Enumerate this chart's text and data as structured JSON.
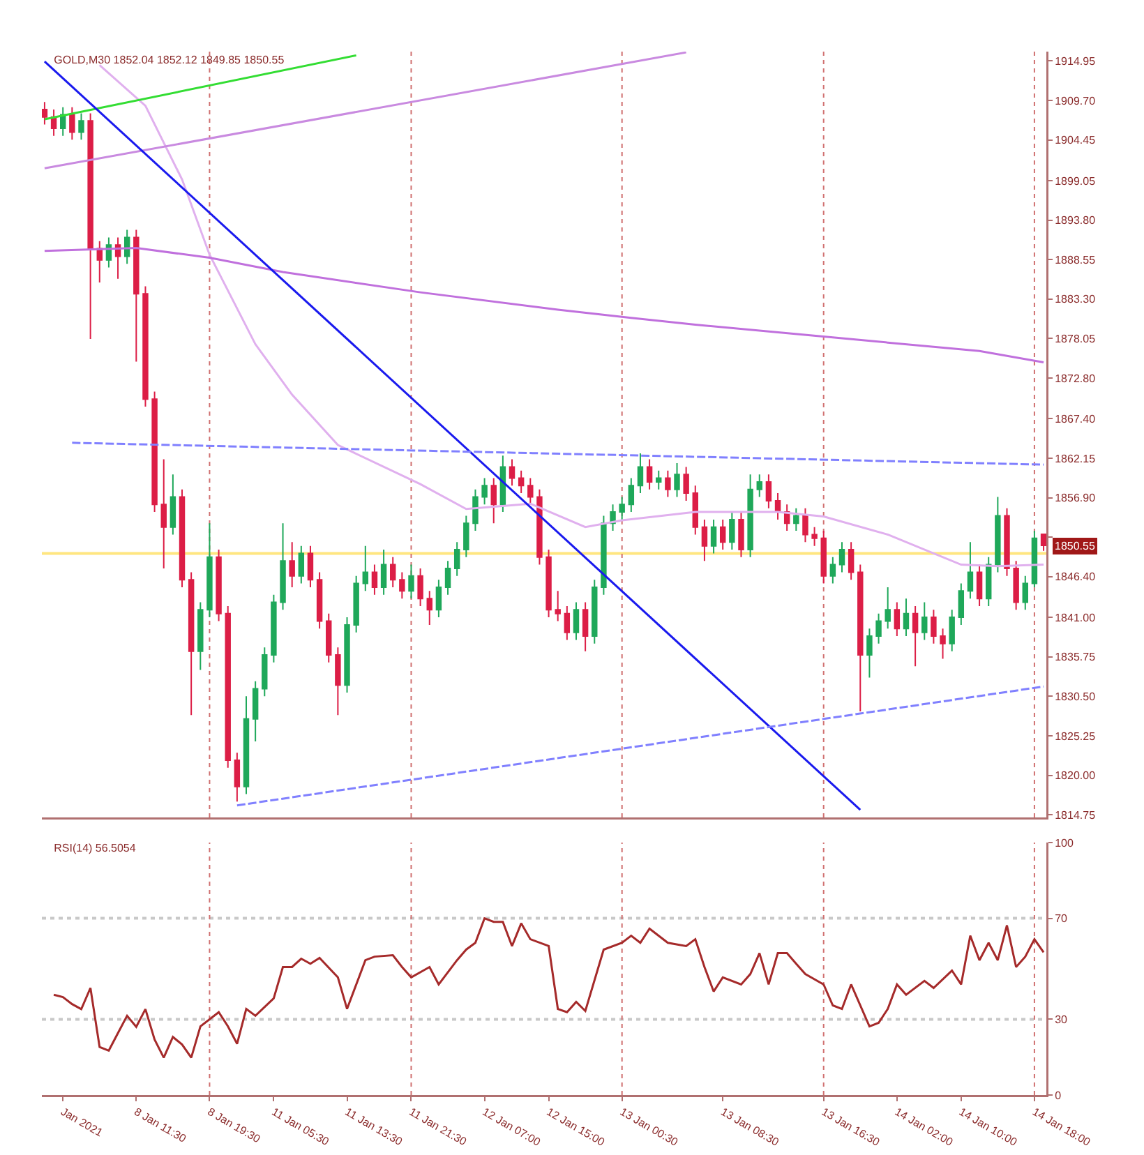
{
  "chart_data": [
    {
      "type": "candlestick",
      "title": "GOLD,M30 1852.04 1852.12 1849.85 1850.55",
      "categories": [
        null,
        null,
        "Jan 2021",
        null,
        null,
        null,
        null,
        null,
        null,
        null,
        "8 Jan 11:30",
        null,
        null,
        null,
        null,
        null,
        null,
        null,
        "8 Jan 19:30",
        null,
        null,
        null,
        null,
        null,
        null,
        "11 Jan 05:30",
        null,
        null,
        null,
        null,
        null,
        null,
        null,
        "11 Jan 13:30",
        null,
        null,
        null,
        null,
        null,
        null,
        "11 Jan 21:30",
        null,
        null,
        null,
        null,
        null,
        null,
        null,
        "12 Jan 07:00",
        null,
        null,
        null,
        null,
        null,
        null,
        "12 Jan 15:00",
        null,
        null,
        null,
        null,
        null,
        null,
        null,
        "13 Jan 00:30",
        null,
        null,
        null,
        null,
        null,
        null,
        null,
        null,
        null,
        null,
        "13 Jan 08:30",
        null,
        null,
        null,
        null,
        null,
        null,
        null,
        null,
        null,
        null,
        "13 Jan 16:30",
        null,
        null,
        null,
        null,
        null,
        null,
        null,
        "14 Jan 02:00",
        null,
        null,
        null,
        null,
        null,
        null,
        "14 Jan 10:00",
        null,
        null,
        null,
        null,
        null,
        null,
        null,
        "14 Jan 18:00",
        null
      ],
      "ohlc": [
        [
          1908.5,
          1909.5,
          1906.5,
          1907.5
        ],
        [
          1907.5,
          1908.5,
          1905.0,
          1906.0
        ],
        [
          1906.0,
          1908.8,
          1905.0,
          1907.8
        ],
        [
          1907.8,
          1908.8,
          1904.5,
          1905.5
        ],
        [
          1905.5,
          1908.0,
          1904.5,
          1907.0
        ],
        [
          1907.0,
          1908.0,
          1878.0,
          1890.0
        ],
        [
          1890.0,
          1891.0,
          1885.5,
          1888.5
        ],
        [
          1888.5,
          1891.5,
          1887.5,
          1890.5
        ],
        [
          1890.5,
          1891.5,
          1886.0,
          1889.0
        ],
        [
          1889.0,
          1892.5,
          1888.0,
          1891.5
        ],
        [
          1891.5,
          1892.5,
          1875.0,
          1884.0
        ],
        [
          1884.0,
          1885.0,
          1869.0,
          1870.0
        ],
        [
          1870.0,
          1871.0,
          1855.0,
          1856.0
        ],
        [
          1856.0,
          1862.0,
          1847.5,
          1853.0
        ],
        [
          1853.0,
          1860.0,
          1852.0,
          1857.0
        ],
        [
          1857.0,
          1858.0,
          1845.0,
          1846.0
        ],
        [
          1846.0,
          1847.0,
          1828.0,
          1836.5
        ],
        [
          1836.5,
          1843.0,
          1834.0,
          1842.0
        ],
        [
          1842.0,
          1853.5,
          1841.0,
          1849.0
        ],
        [
          1849.0,
          1850.0,
          1840.5,
          1841.5
        ],
        [
          1841.5,
          1842.5,
          1821.0,
          1822.0
        ],
        [
          1822.0,
          1823.0,
          1816.5,
          1818.5
        ],
        [
          1818.5,
          1830.5,
          1817.5,
          1827.5
        ],
        [
          1827.5,
          1832.5,
          1824.5,
          1831.5
        ],
        [
          1831.5,
          1837.0,
          1830.5,
          1836.0
        ],
        [
          1836.0,
          1844.0,
          1835.0,
          1843.0
        ],
        [
          1843.0,
          1853.5,
          1842.0,
          1848.5
        ],
        [
          1848.5,
          1851.0,
          1845.0,
          1846.5
        ],
        [
          1846.5,
          1850.5,
          1845.5,
          1849.5
        ],
        [
          1849.5,
          1850.5,
          1845.0,
          1846.0
        ],
        [
          1846.0,
          1847.0,
          1839.5,
          1840.5
        ],
        [
          1840.5,
          1841.5,
          1835.0,
          1836.0
        ],
        [
          1836.0,
          1837.0,
          1828.0,
          1832.0
        ],
        [
          1832.0,
          1841.0,
          1831.0,
          1840.0
        ],
        [
          1840.0,
          1846.5,
          1839.0,
          1845.5
        ],
        [
          1845.5,
          1850.5,
          1844.5,
          1847.0
        ],
        [
          1847.0,
          1848.0,
          1844.0,
          1845.0
        ],
        [
          1845.0,
          1850.0,
          1844.0,
          1848.0
        ],
        [
          1848.0,
          1849.0,
          1845.0,
          1846.0
        ],
        [
          1846.0,
          1847.0,
          1843.5,
          1844.5
        ],
        [
          1844.5,
          1848.0,
          1843.5,
          1846.5
        ],
        [
          1846.5,
          1847.5,
          1842.5,
          1843.5
        ],
        [
          1843.5,
          1844.5,
          1840.0,
          1842.0
        ],
        [
          1842.0,
          1846.0,
          1841.0,
          1845.0
        ],
        [
          1845.0,
          1848.5,
          1844.0,
          1847.5
        ],
        [
          1847.5,
          1851.0,
          1846.5,
          1850.0
        ],
        [
          1850.0,
          1854.5,
          1849.0,
          1853.5
        ],
        [
          1853.5,
          1858.0,
          1852.5,
          1857.0
        ],
        [
          1857.0,
          1859.5,
          1856.0,
          1858.5
        ],
        [
          1858.5,
          1859.5,
          1853.5,
          1856.0
        ],
        [
          1856.0,
          1862.5,
          1855.0,
          1861.0
        ],
        [
          1861.0,
          1862.0,
          1858.5,
          1859.5
        ],
        [
          1859.5,
          1860.5,
          1857.5,
          1858.5
        ],
        [
          1858.5,
          1859.5,
          1856.0,
          1857.0
        ],
        [
          1857.0,
          1858.0,
          1848.0,
          1849.0
        ],
        [
          1849.0,
          1850.0,
          1841.0,
          1842.0
        ],
        [
          1842.0,
          1844.5,
          1840.5,
          1841.5
        ],
        [
          1841.5,
          1842.5,
          1838.0,
          1839.0
        ],
        [
          1839.0,
          1843.0,
          1838.0,
          1842.0
        ],
        [
          1842.0,
          1843.0,
          1836.5,
          1838.5
        ],
        [
          1838.5,
          1846.0,
          1837.5,
          1845.0
        ],
        [
          1845.0,
          1854.5,
          1844.0,
          1853.5
        ],
        [
          1853.5,
          1856.0,
          1852.5,
          1855.0
        ],
        [
          1855.0,
          1857.0,
          1854.0,
          1856.0
        ],
        [
          1856.0,
          1859.5,
          1855.0,
          1858.5
        ],
        [
          1858.5,
          1862.8,
          1857.5,
          1861.0
        ],
        [
          1861.0,
          1862.0,
          1858.0,
          1859.0
        ],
        [
          1859.0,
          1860.5,
          1858.0,
          1859.5
        ],
        [
          1859.5,
          1860.5,
          1857.0,
          1858.0
        ],
        [
          1858.0,
          1861.5,
          1857.0,
          1860.0
        ],
        [
          1860.0,
          1861.0,
          1856.5,
          1857.5
        ],
        [
          1857.5,
          1858.5,
          1852.0,
          1853.0
        ],
        [
          1853.0,
          1854.0,
          1848.5,
          1850.5
        ],
        [
          1850.5,
          1854.0,
          1849.5,
          1853.0
        ],
        [
          1853.0,
          1854.0,
          1850.0,
          1851.0
        ],
        [
          1851.0,
          1855.0,
          1850.0,
          1854.0
        ],
        [
          1854.0,
          1855.0,
          1849.0,
          1850.0
        ],
        [
          1850.0,
          1860.0,
          1849.0,
          1858.0
        ],
        [
          1858.0,
          1860.0,
          1857.0,
          1859.0
        ],
        [
          1859.0,
          1860.0,
          1855.5,
          1856.5
        ],
        [
          1856.5,
          1857.5,
          1854.0,
          1855.0
        ],
        [
          1855.0,
          1856.0,
          1852.5,
          1853.5
        ],
        [
          1853.5,
          1855.5,
          1852.5,
          1854.5
        ],
        [
          1854.5,
          1855.5,
          1851.0,
          1852.0
        ],
        [
          1852.0,
          1853.0,
          1850.5,
          1851.5
        ],
        [
          1851.5,
          1852.5,
          1845.5,
          1846.5
        ],
        [
          1846.5,
          1849.0,
          1845.5,
          1848.0
        ],
        [
          1848.0,
          1851.0,
          1847.0,
          1850.0
        ],
        [
          1850.0,
          1851.0,
          1846.0,
          1847.0
        ],
        [
          1847.0,
          1848.0,
          1828.5,
          1836.0
        ],
        [
          1836.0,
          1839.5,
          1833.0,
          1838.5
        ],
        [
          1838.5,
          1841.5,
          1837.5,
          1840.5
        ],
        [
          1840.5,
          1845.0,
          1839.5,
          1842.0
        ],
        [
          1842.0,
          1843.0,
          1838.5,
          1839.5
        ],
        [
          1839.5,
          1843.5,
          1838.5,
          1841.5
        ],
        [
          1841.5,
          1842.5,
          1834.5,
          1839.0
        ],
        [
          1839.0,
          1843.0,
          1838.0,
          1841.0
        ],
        [
          1841.0,
          1842.0,
          1837.5,
          1838.5
        ],
        [
          1838.5,
          1839.5,
          1835.5,
          1837.5
        ],
        [
          1837.5,
          1842.0,
          1836.5,
          1841.0
        ],
        [
          1841.0,
          1845.5,
          1840.0,
          1844.5
        ],
        [
          1844.5,
          1851.0,
          1843.5,
          1847.0
        ],
        [
          1847.0,
          1848.0,
          1842.5,
          1843.5
        ],
        [
          1843.5,
          1849.0,
          1842.5,
          1848.0
        ],
        [
          1848.0,
          1857.0,
          1847.0,
          1854.5
        ],
        [
          1854.5,
          1855.5,
          1846.5,
          1847.5
        ],
        [
          1847.5,
          1848.5,
          1842.0,
          1843.0
        ],
        [
          1843.0,
          1846.5,
          1842.0,
          1845.5
        ],
        [
          1845.5,
          1852.5,
          1845.0,
          1851.5
        ],
        [
          1852.04,
          1852.12,
          1849.85,
          1850.55
        ]
      ],
      "colors": [
        "#dc1e46",
        "#dc1e46",
        "#1fa85a",
        "#dc1e46",
        "#1fa85a",
        "#dc1e46",
        "#dc1e46",
        "#1fa85a",
        "#dc1e46",
        "#1fa85a",
        "#dc1e46",
        "#dc1e46",
        "#dc1e46",
        "#dc1e46",
        "#1fa85a",
        "#dc1e46",
        "#dc1e46",
        "#1fa85a",
        "#1fa85a",
        "#dc1e46",
        "#dc1e46",
        "#dc1e46",
        "#1fa85a",
        "#1fa85a",
        "#1fa85a",
        "#1fa85a",
        "#1fa85a",
        "#dc1e46",
        "#1fa85a",
        "#dc1e46",
        "#dc1e46",
        "#dc1e46",
        "#dc1e46",
        "#1fa85a",
        "#1fa85a",
        "#1fa85a",
        "#dc1e46",
        "#1fa85a",
        "#dc1e46",
        "#dc1e46",
        "#1fa85a",
        "#dc1e46",
        "#dc1e46",
        "#1fa85a",
        "#1fa85a",
        "#1fa85a",
        "#1fa85a",
        "#1fa85a",
        "#1fa85a",
        "#dc1e46",
        "#1fa85a",
        "#dc1e46",
        "#dc1e46",
        "#dc1e46",
        "#dc1e46",
        "#dc1e46",
        "#dc1e46",
        "#dc1e46",
        "#1fa85a",
        "#dc1e46",
        "#1fa85a",
        "#1fa85a",
        "#1fa85a",
        "#1fa85a",
        "#1fa85a",
        "#1fa85a",
        "#dc1e46",
        "#1fa85a",
        "#dc1e46",
        "#1fa85a",
        "#dc1e46",
        "#dc1e46",
        "#dc1e46",
        "#1fa85a",
        "#dc1e46",
        "#1fa85a",
        "#dc1e46",
        "#1fa85a",
        "#1fa85a",
        "#dc1e46",
        "#dc1e46",
        "#dc1e46",
        "#1fa85a",
        "#dc1e46",
        "#dc1e46",
        "#dc1e46",
        "#1fa85a",
        "#1fa85a",
        "#dc1e46",
        "#dc1e46",
        "#1fa85a",
        "#1fa85a",
        "#1fa85a",
        "#dc1e46",
        "#1fa85a",
        "#dc1e46",
        "#1fa85a",
        "#dc1e46",
        "#dc1e46",
        "#1fa85a",
        "#1fa85a",
        "#1fa85a",
        "#dc1e46",
        "#1fa85a",
        "#1fa85a",
        "#dc1e46",
        "#dc1e46",
        "#1fa85a",
        "#1fa85a",
        "#dc1e46"
      ],
      "series": [
        {
          "type": "line",
          "color": "#e0b0ee",
          "values": [
            null,
            null,
            null,
            null,
            null,
            null,
            1914.4,
            null,
            null,
            null,
            null,
            1909.0,
            null,
            null,
            null,
            1899.2,
            null,
            null,
            1889.2,
            null,
            null,
            null,
            null,
            1877.3,
            null,
            null,
            null,
            1870.6,
            null,
            null,
            null,
            null,
            1863.9,
            null,
            null,
            null,
            null,
            null,
            null,
            null,
            null,
            1858.7,
            null,
            null,
            null,
            null,
            1855.4,
            null,
            null,
            null,
            null,
            null,
            null,
            1856.1,
            null,
            null,
            null,
            null,
            null,
            1853.0,
            null,
            null,
            null,
            1853.9,
            null,
            null,
            null,
            null,
            null,
            null,
            null,
            1855.0,
            null,
            null,
            null,
            null,
            null,
            null,
            null,
            null,
            1855.0,
            null,
            null,
            null,
            null,
            1854.4,
            null,
            null,
            null,
            null,
            null,
            null,
            1852.0,
            null,
            null,
            null,
            null,
            null,
            null,
            null,
            1848.0,
            null,
            null,
            null,
            1847.8,
            null,
            null,
            null,
            null,
            1848.0
          ]
        },
        {
          "type": "line",
          "color": "#c070dd",
          "values": [
            1889.7,
            null,
            null,
            null,
            null,
            null,
            null,
            null,
            null,
            null,
            1890.1,
            null,
            null,
            null,
            null,
            null,
            null,
            null,
            1888.8,
            null,
            null,
            null,
            null,
            null,
            null,
            null,
            1886.9,
            null,
            null,
            null,
            null,
            null,
            null,
            null,
            null,
            null,
            null,
            null,
            null,
            null,
            null,
            1884.2,
            null,
            null,
            null,
            null,
            null,
            null,
            null,
            null,
            null,
            null,
            null,
            null,
            null,
            null,
            1881.9,
            null,
            null,
            null,
            null,
            null,
            null,
            null,
            1880.8,
            null,
            null,
            null,
            null,
            null,
            null,
            1879.9,
            null,
            null,
            null,
            null,
            null,
            null,
            null,
            null,
            null,
            null,
            null,
            null,
            null,
            null,
            1878.2,
            null,
            null,
            null,
            null,
            null,
            null,
            null,
            null,
            null,
            null,
            null,
            null,
            null,
            null,
            null,
            1876.4,
            null,
            null,
            null,
            null,
            null,
            null,
            1874.9
          ]
        },
        {
          "type": "line",
          "color": "#c98ae0",
          "values": [
            1900.7,
            null,
            null,
            null,
            null,
            null,
            null,
            null,
            null,
            null,
            null,
            null,
            null,
            null,
            null,
            null,
            null,
            null,
            null,
            null,
            null,
            null,
            null,
            null,
            null,
            null,
            null,
            null,
            null,
            null,
            null,
            null,
            null,
            null,
            null,
            null,
            null,
            null,
            null,
            null,
            null,
            null,
            null,
            null,
            null,
            null,
            null,
            null,
            null,
            null,
            null,
            null,
            null,
            null,
            null,
            null,
            null,
            null,
            null,
            null,
            null,
            null,
            null,
            null,
            null,
            null,
            null,
            null,
            null,
            null,
            1916.1,
            null,
            null,
            null,
            null,
            null,
            null,
            null,
            null,
            null,
            null,
            null,
            null,
            null,
            null,
            null,
            null,
            null,
            null,
            null,
            null,
            null,
            null,
            null,
            null,
            null,
            null,
            null,
            null,
            null,
            null,
            null,
            null,
            null,
            null,
            null,
            null,
            null,
            null,
            null
          ]
        },
        {
          "type": "line",
          "color": "#33dd33",
          "values": [
            1907.2,
            null,
            null,
            null,
            null,
            null,
            null,
            null,
            null,
            null,
            null,
            null,
            null,
            null,
            null,
            null,
            null,
            null,
            null,
            null,
            null,
            null,
            null,
            null,
            null,
            null,
            null,
            null,
            null,
            null,
            null,
            null,
            null,
            null,
            1915.7,
            null,
            null,
            null,
            null,
            null,
            null,
            null,
            null,
            null,
            null,
            null,
            null,
            null,
            null,
            null,
            null,
            null,
            null,
            null,
            null,
            null,
            null,
            null,
            null,
            null,
            null,
            null,
            null,
            null,
            null,
            null,
            null,
            null,
            null,
            null,
            null,
            null,
            null,
            null,
            null,
            null,
            null,
            null,
            null,
            null,
            null,
            null,
            null,
            null,
            null,
            null,
            null,
            null,
            null,
            null,
            null,
            null,
            null,
            null,
            null,
            null,
            null,
            null,
            null,
            null,
            null,
            null,
            null,
            null,
            null,
            null,
            null,
            null,
            null,
            null
          ]
        },
        {
          "type": "line",
          "color": "#1a1aee",
          "values": [
            1914.9,
            null,
            null,
            null,
            null,
            null,
            null,
            null,
            null,
            null,
            null,
            null,
            null,
            null,
            null,
            null,
            null,
            null,
            null,
            null,
            null,
            null,
            null,
            null,
            null,
            null,
            null,
            null,
            null,
            null,
            null,
            null,
            null,
            null,
            null,
            null,
            null,
            null,
            null,
            null,
            null,
            null,
            null,
            null,
            null,
            null,
            null,
            null,
            null,
            null,
            null,
            null,
            null,
            null,
            null,
            null,
            null,
            null,
            null,
            null,
            null,
            null,
            null,
            null,
            null,
            null,
            null,
            null,
            null,
            null,
            null,
            null,
            null,
            null,
            null,
            null,
            null,
            null,
            null,
            null,
            null,
            null,
            null,
            null,
            null,
            null,
            null,
            null,
            null,
            1815.4,
            null,
            null,
            null,
            null,
            null,
            null,
            null,
            null,
            null,
            null,
            null,
            null,
            null,
            null,
            null,
            null,
            null,
            null,
            null,
            null
          ]
        },
        {
          "type": "line",
          "color": "#8080ff",
          "line_style": "dashed",
          "values": [
            null,
            null,
            null,
            1864.2,
            null,
            null,
            null,
            null,
            null,
            null,
            null,
            null,
            null,
            null,
            null,
            null,
            null,
            null,
            null,
            null,
            null,
            null,
            null,
            null,
            null,
            null,
            null,
            null,
            null,
            null,
            null,
            null,
            null,
            null,
            null,
            null,
            null,
            null,
            null,
            null,
            null,
            null,
            null,
            null,
            null,
            null,
            null,
            null,
            null,
            null,
            null,
            null,
            null,
            null,
            null,
            null,
            null,
            null,
            null,
            null,
            null,
            null,
            null,
            null,
            null,
            null,
            null,
            null,
            null,
            null,
            null,
            null,
            null,
            null,
            null,
            null,
            null,
            null,
            null,
            null,
            null,
            null,
            null,
            null,
            null,
            null,
            null,
            null,
            null,
            null,
            null,
            null,
            null,
            null,
            null,
            null,
            null,
            null,
            null,
            null,
            null,
            null,
            null,
            null,
            null,
            null,
            null,
            null,
            null,
            1861.3
          ]
        },
        {
          "type": "line",
          "color": "#8080ff",
          "line_style": "dashed",
          "values": [
            null,
            null,
            null,
            null,
            null,
            null,
            null,
            null,
            null,
            null,
            null,
            null,
            null,
            null,
            null,
            null,
            null,
            null,
            null,
            null,
            null,
            1816.0,
            null,
            null,
            null,
            null,
            null,
            null,
            null,
            null,
            null,
            null,
            null,
            null,
            null,
            null,
            null,
            null,
            null,
            null,
            null,
            null,
            null,
            null,
            null,
            null,
            null,
            null,
            null,
            null,
            null,
            null,
            null,
            null,
            null,
            null,
            null,
            null,
            null,
            null,
            null,
            null,
            null,
            null,
            null,
            null,
            null,
            null,
            null,
            null,
            null,
            null,
            null,
            null,
            null,
            null,
            null,
            null,
            null,
            null,
            null,
            null,
            null,
            null,
            null,
            null,
            null,
            null,
            null,
            null,
            null,
            null,
            null,
            null,
            null,
            null,
            null,
            null,
            null,
            null,
            null,
            null,
            null,
            null,
            null,
            null,
            null,
            null,
            null,
            1831.8
          ]
        }
      ],
      "annotations": [
        "1850.55"
      ],
      "ref_lines": [
        {
          "axis": "y",
          "value": 1849.5,
          "color": "#ffe680"
        },
        {
          "axis": "x",
          "value": "8 Jan 19:30",
          "color": "#d07070",
          "line_style": "dotted"
        },
        {
          "axis": "x",
          "value": "11 Jan 21:30",
          "color": "#d07070",
          "line_style": "dotted"
        },
        {
          "axis": "x",
          "value": "13 Jan 00:30",
          "color": "#d07070",
          "line_style": "dotted"
        },
        {
          "axis": "x",
          "value": "13 Jan 16:30",
          "color": "#d07070",
          "line_style": "dotted"
        },
        {
          "axis": "x",
          "value": "14 Jan 18:00",
          "color": "#d07070",
          "line_style": "dotted"
        }
      ],
      "ylim": [
        1814.4,
        1916.2
      ],
      "yticks": [
        {
          "value": 1914.95,
          "label": "1914.95"
        },
        {
          "value": 1909.7,
          "label": "1909.70"
        },
        {
          "value": 1904.45,
          "label": "1904.45"
        },
        {
          "value": 1899.05,
          "label": "1899.05"
        },
        {
          "value": 1893.8,
          "label": "1893.80"
        },
        {
          "value": 1888.55,
          "label": "1888.55"
        },
        {
          "value": 1883.3,
          "label": "1883.30"
        },
        {
          "value": 1878.05,
          "label": "1878.05"
        },
        {
          "value": 1872.8,
          "label": "1872.80"
        },
        {
          "value": 1867.4,
          "label": "1867.40"
        },
        {
          "value": 1862.15,
          "label": "1862.15"
        },
        {
          "value": 1856.9,
          "label": "1856.90"
        },
        {
          "value": 1851.65,
          "label": null
        },
        {
          "value": 1846.4,
          "label": "1846.40"
        },
        {
          "value": 1841.0,
          "label": "1841.00"
        },
        {
          "value": 1835.75,
          "label": "1835.75"
        },
        {
          "value": 1830.5,
          "label": "1830.50"
        },
        {
          "value": 1825.25,
          "label": "1825.25"
        },
        {
          "value": 1820.0,
          "label": "1820.00"
        },
        {
          "value": 1814.75,
          "label": "1814.75"
        }
      ],
      "tick_labels": "y"
    },
    {
      "type": "line",
      "title": "RSI(14) 56.5054",
      "categories": [
        null,
        null,
        "Jan 2021",
        null,
        null,
        null,
        null,
        null,
        null,
        null,
        "8 Jan 11:30",
        null,
        null,
        null,
        null,
        null,
        null,
        null,
        "8 Jan 19:30",
        null,
        null,
        null,
        null,
        null,
        null,
        "11 Jan 05:30",
        null,
        null,
        null,
        null,
        null,
        null,
        null,
        "11 Jan 13:30",
        null,
        null,
        null,
        null,
        null,
        null,
        "11 Jan 21:30",
        null,
        null,
        null,
        null,
        null,
        null,
        null,
        "12 Jan 07:00",
        null,
        null,
        null,
        null,
        null,
        null,
        "12 Jan 15:00",
        null,
        null,
        null,
        null,
        null,
        null,
        null,
        "13 Jan 00:30",
        null,
        null,
        null,
        null,
        null,
        null,
        null,
        null,
        null,
        null,
        "13 Jan 08:30",
        null,
        null,
        null,
        null,
        null,
        null,
        null,
        null,
        null,
        null,
        "13 Jan 16:30",
        null,
        null,
        null,
        null,
        null,
        null,
        null,
        "14 Jan 02:00",
        null,
        null,
        null,
        null,
        null,
        null,
        "14 Jan 10:00",
        null,
        null,
        null,
        null,
        null,
        null,
        null,
        "14 Jan 18:00",
        null
      ],
      "series": [
        {
          "color": "#a52a2a",
          "values": [
            null,
            39.7,
            38.8,
            36.0,
            34.0,
            42.4,
            19.0,
            17.6,
            24.5,
            31.4,
            27.0,
            34.0,
            22.0,
            14.8,
            23.0,
            20.0,
            14.8,
            27.2,
            null,
            32.8,
            27.2,
            20.3,
            34.1,
            31.4,
            null,
            38.3,
            50.7,
            50.7,
            54.0,
            52.0,
            54.3,
            null,
            46.6,
            34.1,
            null,
            53.4,
            54.8,
            null,
            55.4,
            50.7,
            46.6,
            null,
            50.7,
            43.8,
            null,
            53.4,
            57.6,
            60.3,
            70.0,
            68.6,
            68.6,
            59.0,
            68.0,
            61.7,
            null,
            59.0,
            34.1,
            32.8,
            36.9,
            33.3,
            null,
            57.6,
            null,
            60.3,
            63.1,
            60.3,
            65.9,
            null,
            60.3,
            null,
            59.0,
            61.7,
            50.7,
            41.0,
            46.6,
            null,
            43.8,
            47.9,
            56.2,
            43.8,
            56.2,
            56.2,
            52.0,
            47.9,
            null,
            43.8,
            35.5,
            34.1,
            43.8,
            null,
            27.2,
            28.6,
            34.1,
            43.8,
            39.7,
            null,
            45.2,
            42.4,
            null,
            49.3,
            43.8,
            63.1,
            53.4,
            60.3,
            53.4,
            67.2,
            50.7,
            54.8,
            61.7,
            56.5
          ]
        }
      ],
      "ref_lines": [
        {
          "axis": "y",
          "value": 70,
          "color": "#c8c8c8",
          "line_style": "dotted"
        },
        {
          "axis": "y",
          "value": 30,
          "color": "#c8c8c8",
          "line_style": "dotted"
        },
        {
          "axis": "x",
          "value": "8 Jan 19:30",
          "color": "#d07070",
          "line_style": "dotted"
        },
        {
          "axis": "x",
          "value": "11 Jan 21:30",
          "color": "#d07070",
          "line_style": "dotted"
        },
        {
          "axis": "x",
          "value": "13 Jan 00:30",
          "color": "#d07070",
          "line_style": "dotted"
        },
        {
          "axis": "x",
          "value": "13 Jan 16:30",
          "color": "#d07070",
          "line_style": "dotted"
        },
        {
          "axis": "x",
          "value": "14 Jan 18:00",
          "color": "#d07070",
          "line_style": "dotted"
        }
      ],
      "ylim": [
        0,
        100
      ],
      "yticks": [
        0,
        30,
        70,
        100
      ]
    }
  ]
}
